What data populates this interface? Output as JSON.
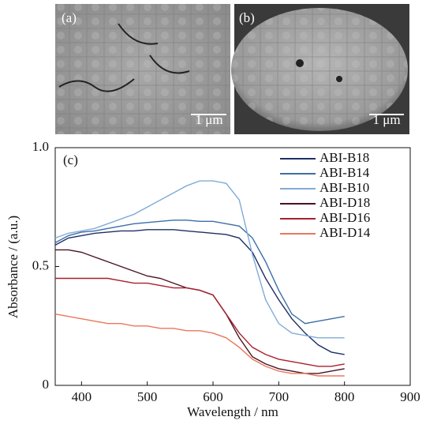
{
  "panels": [
    {
      "label": "(a)",
      "scale_bar": "1 μm"
    },
    {
      "label": "(b)",
      "scale_bar": "1 μm"
    }
  ],
  "chart_data": {
    "type": "line",
    "annotation": "(c)",
    "x_label": "Wavelength / nm",
    "y_label": "Absorbance / (a.u.)",
    "x": [
      360,
      380,
      400,
      420,
      440,
      460,
      480,
      500,
      520,
      540,
      560,
      580,
      600,
      620,
      640,
      660,
      680,
      700,
      720,
      740,
      760,
      780,
      800
    ],
    "xlim": [
      360,
      900
    ],
    "xticks": [
      400,
      500,
      600,
      700,
      800,
      900
    ],
    "ylim": [
      0,
      1
    ],
    "yticks": [
      0,
      0.5,
      {
        "value": 1,
        "label": "1.0"
      }
    ],
    "legend": "upper right",
    "series": [
      {
        "name": "ABI-B18",
        "color": "#1f2f66",
        "values": [
          0.59,
          0.62,
          0.63,
          0.64,
          0.645,
          0.65,
          0.65,
          0.655,
          0.655,
          0.655,
          0.65,
          0.645,
          0.64,
          0.635,
          0.62,
          0.56,
          0.45,
          0.36,
          0.28,
          0.22,
          0.17,
          0.14,
          0.13
        ]
      },
      {
        "name": "ABI-B14",
        "color": "#3d6ea6",
        "values": [
          0.6,
          0.63,
          0.645,
          0.65,
          0.66,
          0.67,
          0.68,
          0.685,
          0.69,
          0.695,
          0.695,
          0.69,
          0.69,
          0.68,
          0.67,
          0.62,
          0.52,
          0.4,
          0.3,
          0.26,
          0.27,
          0.28,
          0.29
        ]
      },
      {
        "name": "ABI-B10",
        "color": "#80abd8",
        "values": [
          0.62,
          0.64,
          0.65,
          0.66,
          0.68,
          0.7,
          0.72,
          0.75,
          0.78,
          0.81,
          0.84,
          0.86,
          0.86,
          0.85,
          0.78,
          0.55,
          0.36,
          0.26,
          0.22,
          0.21,
          0.2,
          0.2,
          0.2
        ]
      },
      {
        "name": "ABI-D18",
        "color": "#4a1222",
        "values": [
          0.57,
          0.57,
          0.56,
          0.54,
          0.52,
          0.5,
          0.48,
          0.46,
          0.45,
          0.43,
          0.41,
          0.4,
          0.38,
          0.3,
          0.2,
          0.12,
          0.09,
          0.07,
          0.06,
          0.05,
          0.05,
          0.06,
          0.07
        ]
      },
      {
        "name": "ABI-D16",
        "color": "#a8202e",
        "values": [
          0.45,
          0.45,
          0.45,
          0.45,
          0.45,
          0.44,
          0.43,
          0.43,
          0.42,
          0.41,
          0.41,
          0.4,
          0.38,
          0.3,
          0.22,
          0.16,
          0.13,
          0.11,
          0.1,
          0.09,
          0.08,
          0.08,
          0.09
        ]
      },
      {
        "name": "ABI-D14",
        "color": "#e8785c",
        "values": [
          0.3,
          0.29,
          0.28,
          0.27,
          0.26,
          0.26,
          0.25,
          0.25,
          0.24,
          0.24,
          0.23,
          0.23,
          0.22,
          0.2,
          0.16,
          0.11,
          0.08,
          0.06,
          0.05,
          0.05,
          0.04,
          0.04,
          0.04
        ]
      }
    ]
  }
}
